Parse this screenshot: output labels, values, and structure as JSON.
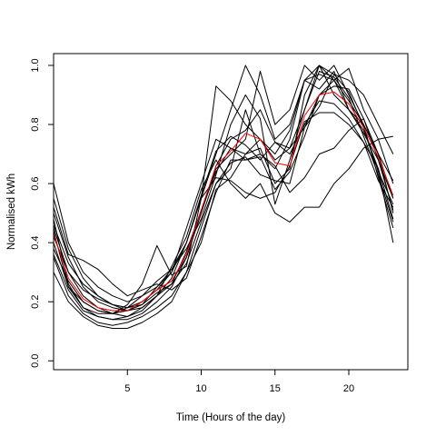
{
  "chart_data": {
    "type": "line",
    "xlabel": "Time (Hours of the day)",
    "ylabel": "Normalised kWh",
    "xlim": [
      0,
      24
    ],
    "ylim": [
      -0.03,
      1.04
    ],
    "xticks": [
      5,
      10,
      15,
      20
    ],
    "xtick_labels": [
      "5",
      "10",
      "15",
      "20"
    ],
    "yticks": [
      0.0,
      0.2,
      0.4,
      0.6,
      0.8,
      1.0
    ],
    "ytick_labels": [
      "0.0",
      "0.2",
      "0.4",
      "0.6",
      "0.8",
      "1.0"
    ],
    "grid": false,
    "legend": "none",
    "x": [
      0,
      1,
      2,
      3,
      4,
      5,
      6,
      7,
      8,
      9,
      10,
      11,
      12,
      13,
      14,
      15,
      16,
      17,
      18,
      19,
      20,
      21,
      22,
      23
    ],
    "series": [
      {
        "color": "#000000",
        "values": [
          0.6,
          0.4,
          0.3,
          0.25,
          0.22,
          0.2,
          0.22,
          0.25,
          0.3,
          0.4,
          0.55,
          0.7,
          0.85,
          1.0,
          0.9,
          0.75,
          0.8,
          0.95,
          1.0,
          0.97,
          0.95,
          0.9,
          0.8,
          0.7
        ]
      },
      {
        "color": "#000000",
        "values": [
          0.5,
          0.35,
          0.25,
          0.2,
          0.18,
          0.17,
          0.2,
          0.24,
          0.3,
          0.45,
          0.6,
          0.75,
          0.72,
          0.7,
          0.72,
          0.6,
          0.65,
          0.9,
          1.0,
          0.95,
          0.99,
          0.85,
          0.75,
          0.6
        ]
      },
      {
        "color": "#000000",
        "values": [
          0.45,
          0.3,
          0.22,
          0.18,
          0.16,
          0.15,
          0.17,
          0.22,
          0.28,
          0.4,
          0.55,
          0.93,
          0.88,
          0.8,
          0.75,
          0.68,
          0.72,
          0.85,
          1.0,
          0.9,
          0.85,
          0.8,
          0.7,
          0.55
        ]
      },
      {
        "color": "#000000",
        "values": [
          0.4,
          0.25,
          0.18,
          0.15,
          0.14,
          0.14,
          0.16,
          0.2,
          0.25,
          0.35,
          0.5,
          0.65,
          0.7,
          0.75,
          0.98,
          0.8,
          0.85,
          1.0,
          0.95,
          1.0,
          0.9,
          0.8,
          0.7,
          0.5
        ]
      },
      {
        "color": "#000000",
        "values": [
          0.35,
          0.22,
          0.16,
          0.13,
          0.12,
          0.13,
          0.15,
          0.18,
          0.22,
          0.3,
          0.45,
          0.6,
          0.65,
          0.85,
          0.7,
          0.65,
          0.75,
          0.95,
          0.92,
          0.98,
          0.85,
          0.78,
          0.65,
          0.48
        ]
      },
      {
        "color": "#000000",
        "values": [
          0.3,
          0.2,
          0.15,
          0.12,
          0.11,
          0.11,
          0.13,
          0.16,
          0.2,
          0.3,
          0.4,
          0.58,
          0.62,
          0.7,
          0.75,
          0.7,
          0.78,
          0.95,
          0.97,
          0.95,
          0.88,
          0.8,
          0.62,
          0.45
        ]
      },
      {
        "color": "#000000",
        "values": [
          0.55,
          0.38,
          0.28,
          0.22,
          0.19,
          0.17,
          0.18,
          0.22,
          0.32,
          0.42,
          0.58,
          0.68,
          0.6,
          0.55,
          0.6,
          0.5,
          0.47,
          0.52,
          0.52,
          0.6,
          0.65,
          0.72,
          0.75,
          0.76
        ]
      },
      {
        "color": "#000000",
        "values": [
          0.52,
          0.36,
          0.34,
          0.31,
          0.26,
          0.22,
          0.24,
          0.26,
          0.24,
          0.28,
          0.42,
          0.57,
          0.68,
          0.68,
          0.7,
          0.66,
          0.57,
          0.62,
          0.7,
          0.72,
          0.78,
          0.82,
          0.7,
          0.61
        ]
      },
      {
        "color": "#000000",
        "values": [
          0.42,
          0.3,
          0.24,
          0.21,
          0.19,
          0.18,
          0.2,
          0.24,
          0.27,
          0.35,
          0.5,
          0.66,
          0.75,
          0.78,
          0.85,
          0.74,
          0.72,
          0.79,
          0.9,
          0.93,
          0.92,
          0.82,
          0.68,
          0.51
        ]
      },
      {
        "color": "#000000",
        "values": [
          0.38,
          0.27,
          0.2,
          0.17,
          0.16,
          0.17,
          0.19,
          0.25,
          0.31,
          0.38,
          0.48,
          0.63,
          0.8,
          0.9,
          0.82,
          0.53,
          0.68,
          0.85,
          0.98,
          0.96,
          0.89,
          0.76,
          0.63,
          0.47
        ]
      },
      {
        "color": "#000000",
        "values": [
          0.48,
          0.26,
          0.18,
          0.16,
          0.16,
          0.19,
          0.26,
          0.39,
          0.29,
          0.32,
          0.55,
          0.62,
          0.61,
          0.57,
          0.55,
          0.57,
          0.66,
          0.81,
          0.84,
          0.84,
          0.8,
          0.74,
          0.65,
          0.4
        ]
      },
      {
        "color": "#000000",
        "values": [
          0.44,
          0.25,
          0.2,
          0.17,
          0.16,
          0.18,
          0.22,
          0.27,
          0.31,
          0.4,
          0.56,
          0.71,
          0.76,
          0.73,
          0.68,
          0.74,
          0.7,
          0.8,
          0.88,
          0.87,
          0.82,
          0.74,
          0.61,
          0.52
        ]
      },
      {
        "color": "#000000",
        "values": [
          0.36,
          0.24,
          0.17,
          0.15,
          0.14,
          0.15,
          0.18,
          0.22,
          0.26,
          0.33,
          0.47,
          0.6,
          0.67,
          0.69,
          0.63,
          0.61,
          0.6,
          0.79,
          0.86,
          0.97,
          0.91,
          0.79,
          0.64,
          0.53
        ]
      },
      {
        "color": "#000000",
        "values": [
          0.46,
          0.33,
          0.26,
          0.22,
          0.19,
          0.18,
          0.19,
          0.23,
          0.26,
          0.37,
          0.51,
          0.64,
          0.72,
          0.68,
          0.69,
          0.58,
          0.64,
          0.76,
          0.9,
          0.95,
          0.85,
          0.77,
          0.68,
          0.55
        ]
      },
      {
        "color": "#ff0000",
        "values": [
          0.43,
          0.28,
          0.21,
          0.18,
          0.17,
          0.17,
          0.2,
          0.24,
          0.27,
          0.36,
          0.51,
          0.66,
          0.71,
          0.77,
          0.75,
          0.67,
          0.66,
          0.83,
          0.9,
          0.91,
          0.87,
          0.79,
          0.69,
          0.56
        ]
      }
    ]
  }
}
